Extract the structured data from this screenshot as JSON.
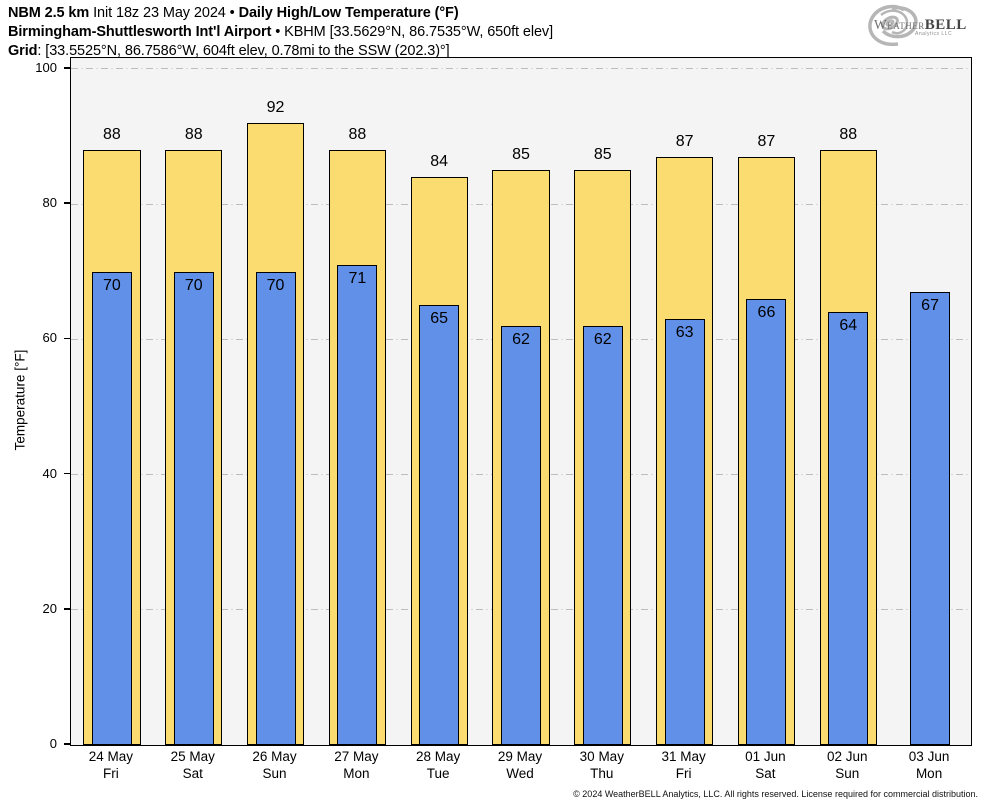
{
  "header": {
    "line1": {
      "bold1": "NBM 2.5 km",
      "text1": " Init 18z 23 May 2024 • ",
      "bold2": "Daily High/Low Temperature (°F)"
    },
    "line2": {
      "bold": "Birmingham-Shuttlesworth Int'l Airport",
      "text": " • KBHM [33.5629°N, 86.7535°W, 650ft elev]"
    },
    "line3": {
      "bold": "Grid",
      "text": ": [33.5525°N, 86.7586°W, 604ft elev, 0.78mi to the SSW (202.3)°]"
    }
  },
  "logo": {
    "name_part1": "Weather",
    "name_part2": "BELL",
    "subtitle": "Analytics LLC"
  },
  "chart_data": {
    "type": "bar",
    "title": "Daily High/Low Temperature (°F) — NBM 2.5 km Init 18z 23 May 2024",
    "ylabel": "Temperature [°F]",
    "xlabel": "",
    "ylim": [
      0,
      101.6
    ],
    "yticks": [
      0,
      20,
      40,
      60,
      80,
      100
    ],
    "grid": "horizontal dash-dot gridlines at yticks",
    "legend": "none",
    "categories": [
      {
        "date": "24 May",
        "day": "Fri"
      },
      {
        "date": "25 May",
        "day": "Sat"
      },
      {
        "date": "26 May",
        "day": "Sun"
      },
      {
        "date": "27 May",
        "day": "Mon"
      },
      {
        "date": "28 May",
        "day": "Tue"
      },
      {
        "date": "29 May",
        "day": "Wed"
      },
      {
        "date": "30 May",
        "day": "Thu"
      },
      {
        "date": "31 May",
        "day": "Fri"
      },
      {
        "date": "01 Jun",
        "day": "Sat"
      },
      {
        "date": "02 Jun",
        "day": "Sun"
      },
      {
        "date": "03 Jun",
        "day": "Mon"
      }
    ],
    "series": [
      {
        "name": "Daily High",
        "color": "#fbdc70",
        "values": [
          88,
          88,
          92,
          88,
          84,
          85,
          85,
          87,
          87,
          88,
          null
        ]
      },
      {
        "name": "Daily Low",
        "color": "#6190e8",
        "values": [
          70,
          70,
          70,
          71,
          65,
          62,
          62,
          63,
          66,
          64,
          67
        ]
      }
    ]
  },
  "footer": {
    "copyright": "© 2024 WeatherBELL Analytics, LLC. All rights reserved. License required for commercial distribution."
  }
}
